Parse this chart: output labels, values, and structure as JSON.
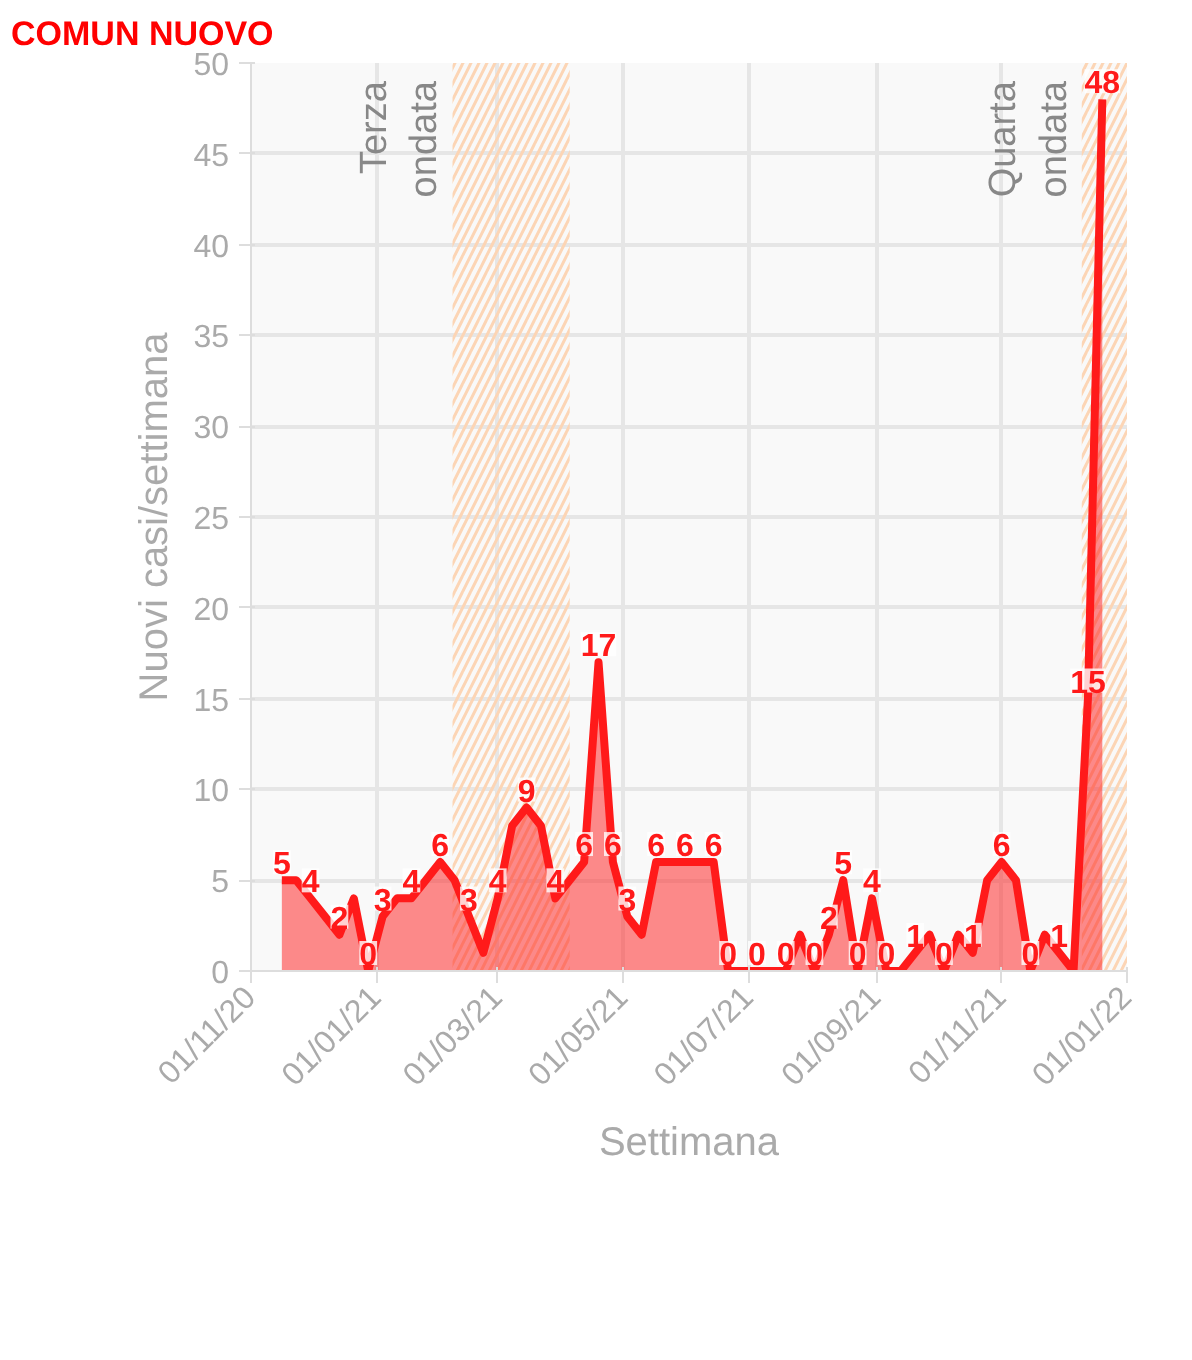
{
  "chart_data": {
    "type": "area",
    "title": "COMUN NUOVO",
    "xlabel": "Settimana",
    "ylabel": "Nuovi casi/settimana",
    "x": [
      "2020-11-16",
      "2020-11-23",
      "2020-11-30",
      "2020-12-07",
      "2020-12-14",
      "2020-12-21",
      "2020-12-28",
      "2021-01-04",
      "2021-01-11",
      "2021-01-18",
      "2021-01-25",
      "2021-02-01",
      "2021-02-08",
      "2021-02-15",
      "2021-02-22",
      "2021-03-01",
      "2021-03-08",
      "2021-03-15",
      "2021-03-22",
      "2021-03-29",
      "2021-04-05",
      "2021-04-12",
      "2021-04-19",
      "2021-04-26",
      "2021-05-03",
      "2021-05-10",
      "2021-05-17",
      "2021-05-24",
      "2021-05-31",
      "2021-06-07",
      "2021-06-14",
      "2021-06-21",
      "2021-06-28",
      "2021-07-05",
      "2021-07-12",
      "2021-07-19",
      "2021-07-26",
      "2021-08-02",
      "2021-08-09",
      "2021-08-16",
      "2021-08-23",
      "2021-08-30",
      "2021-09-06",
      "2021-09-13",
      "2021-09-20",
      "2021-09-27",
      "2021-10-04",
      "2021-10-11",
      "2021-10-18",
      "2021-10-25",
      "2021-11-01",
      "2021-11-08",
      "2021-11-15",
      "2021-11-22",
      "2021-11-29",
      "2021-12-06",
      "2021-12-13",
      "2021-12-20"
    ],
    "series": [
      {
        "color": "#ff1a1a",
        "values": [
          5,
          5,
          4,
          3,
          2,
          4,
          0,
          3,
          4,
          4,
          5,
          6,
          5,
          3,
          1,
          4,
          8,
          9,
          8,
          4,
          5,
          6,
          17,
          6,
          3,
          2,
          6,
          6,
          6,
          6,
          6,
          0,
          0,
          0,
          0,
          0,
          2,
          0,
          2,
          5,
          0,
          4,
          0,
          0,
          1,
          2,
          0,
          2,
          1,
          5,
          6,
          5,
          0,
          2,
          1,
          0,
          15,
          48
        ],
        "value_labels": [
          "5",
          null,
          "4",
          null,
          "2",
          null,
          "0",
          "3",
          null,
          "4",
          null,
          "6",
          null,
          "3",
          null,
          "4",
          null,
          "9",
          null,
          "4",
          null,
          "6",
          "17",
          "6",
          "3",
          null,
          "6",
          null,
          "6",
          null,
          "6",
          "0",
          null,
          "0",
          null,
          "0",
          null,
          "0",
          "2",
          "5",
          "0",
          "4",
          "0",
          null,
          "1",
          null,
          "0",
          null,
          "1",
          null,
          "6",
          null,
          "0",
          null,
          "1",
          null,
          "15",
          "48"
        ]
      }
    ],
    "xlim": [
      "2020-11-01",
      "2022-01-01"
    ],
    "xticks": [
      {
        "value": "2020-11-01",
        "label": "01/11/20"
      },
      {
        "value": "2021-01-01",
        "label": "01/01/21"
      },
      {
        "value": "2021-03-01",
        "label": "01/03/21"
      },
      {
        "value": "2021-05-01",
        "label": "01/05/21"
      },
      {
        "value": "2021-07-01",
        "label": "01/07/21"
      },
      {
        "value": "2021-09-01",
        "label": "01/09/21"
      },
      {
        "value": "2021-11-01",
        "label": "01/11/21"
      },
      {
        "value": "2022-01-01",
        "label": "01/01/22"
      }
    ],
    "ylim": [
      0,
      50
    ],
    "yticks": [
      0,
      5,
      10,
      15,
      20,
      25,
      30,
      35,
      40,
      45,
      50
    ],
    "bands": [
      {
        "axis": "x",
        "from": "2021-02-07",
        "to": "2021-04-05",
        "label": "Terza\nondata",
        "color": "#fcd5b5"
      },
      {
        "axis": "x",
        "from": "2021-12-10",
        "to": "2022-01-01",
        "label": "Quarta\nondata",
        "color": "#fcd5b5"
      }
    ],
    "grid": true
  }
}
